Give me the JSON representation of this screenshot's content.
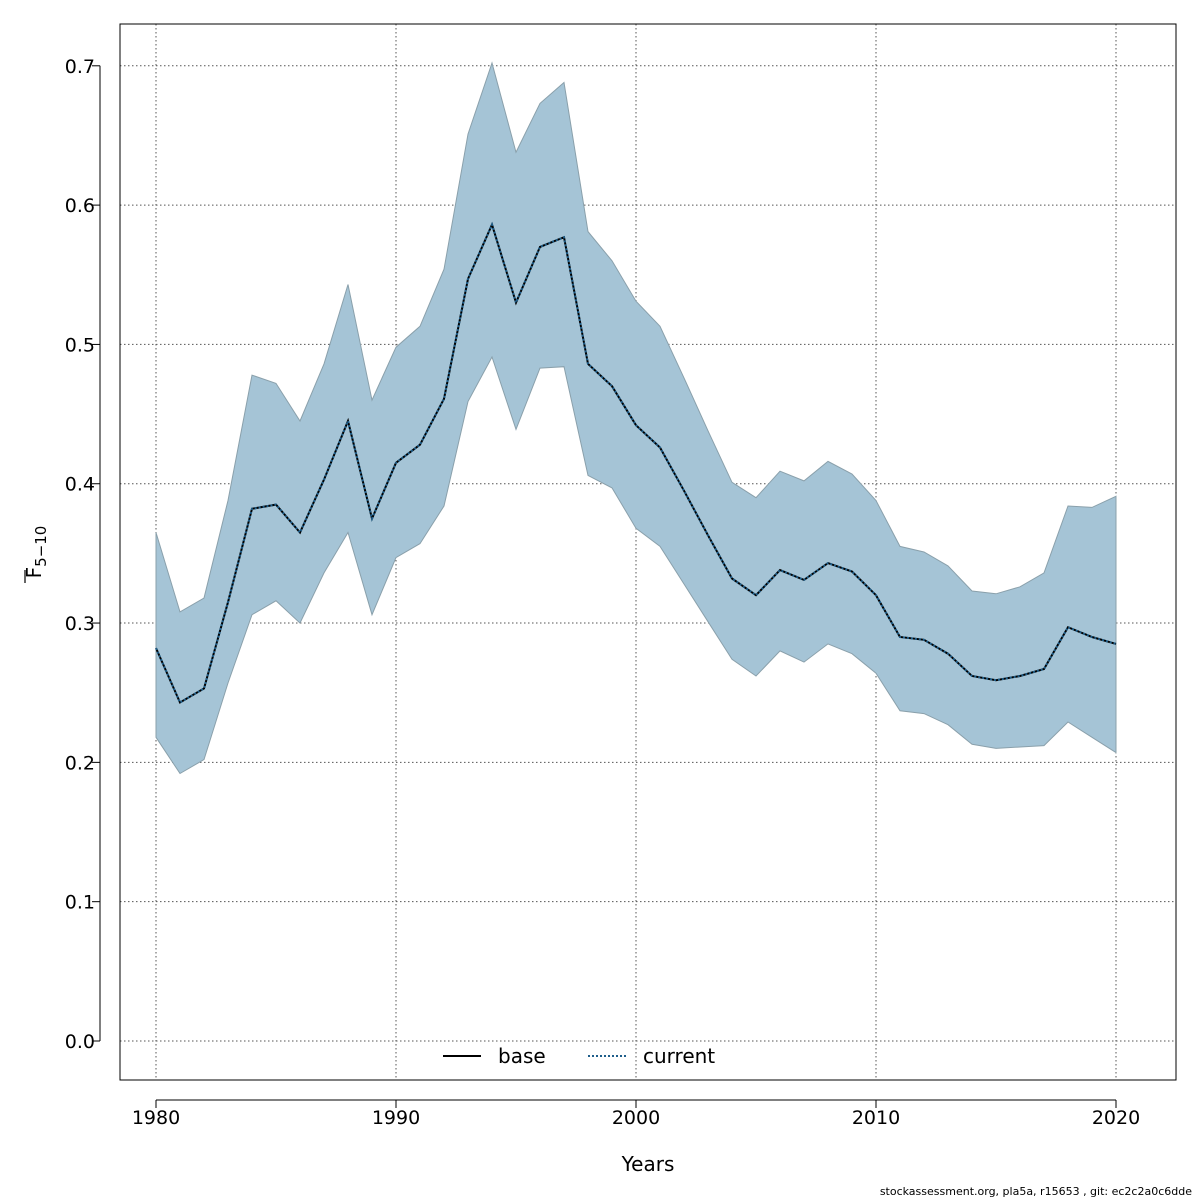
{
  "chart_data": {
    "type": "area",
    "xlabel": "Years",
    "ylabel_main": "F",
    "ylabel_sub": "5−10",
    "xlim": [
      1978.5,
      2022.5
    ],
    "ylim": [
      -0.028,
      0.73
    ],
    "x_ticks": [
      1980,
      1990,
      2000,
      2010,
      2020
    ],
    "y_ticks": [
      0.0,
      0.1,
      0.2,
      0.3,
      0.4,
      0.5,
      0.6,
      0.7
    ],
    "x_tick_labels": [
      "1980",
      "1990",
      "2000",
      "2010",
      "2020"
    ],
    "y_tick_labels": [
      "0.0",
      "0.1",
      "0.2",
      "0.3",
      "0.4",
      "0.5",
      "0.6",
      "0.7"
    ],
    "grid": true,
    "legend_position": "bottom-center",
    "colors": {
      "band": "#a5c4d6",
      "band_edge": "#8aa0ab",
      "current": "#1f5f8b",
      "base": "#000000",
      "grid": "#555555"
    },
    "x": [
      1980,
      1981,
      1982,
      1983,
      1984,
      1985,
      1986,
      1987,
      1988,
      1989,
      1990,
      1991,
      1992,
      1993,
      1994,
      1995,
      1996,
      1997,
      1998,
      1999,
      2000,
      2001,
      2002,
      2003,
      2004,
      2005,
      2006,
      2007,
      2008,
      2009,
      2010,
      2011,
      2012,
      2013,
      2014,
      2015,
      2016,
      2017,
      2018,
      2019,
      2020
    ],
    "band_upper": [
      0.365,
      0.308,
      0.318,
      0.388,
      0.478,
      0.472,
      0.445,
      0.486,
      0.543,
      0.46,
      0.498,
      0.513,
      0.554,
      0.651,
      0.702,
      0.638,
      0.673,
      0.688,
      0.581,
      0.56,
      0.531,
      0.513,
      0.476,
      0.438,
      0.401,
      0.39,
      0.409,
      0.402,
      0.416,
      0.407,
      0.388,
      0.355,
      0.351,
      0.341,
      0.323,
      0.321,
      0.326,
      0.336,
      0.384,
      0.383,
      0.391
    ],
    "band_lower": [
      0.218,
      0.192,
      0.202,
      0.257,
      0.306,
      0.316,
      0.3,
      0.336,
      0.365,
      0.306,
      0.347,
      0.357,
      0.384,
      0.459,
      0.491,
      0.439,
      0.483,
      0.484,
      0.406,
      0.397,
      0.368,
      0.355,
      0.328,
      0.301,
      0.274,
      0.262,
      0.28,
      0.272,
      0.285,
      0.278,
      0.264,
      0.237,
      0.235,
      0.227,
      0.213,
      0.21,
      0.211,
      0.212,
      0.229,
      0.218,
      0.207
    ],
    "series": [
      {
        "name": "base",
        "style": "solid",
        "values": [
          0.282,
          0.243,
          0.253,
          0.315,
          0.382,
          0.385,
          0.365,
          0.403,
          0.445,
          0.375,
          0.415,
          0.428,
          0.461,
          0.547,
          0.586,
          0.53,
          0.57,
          0.577,
          0.486,
          0.47,
          0.442,
          0.426,
          0.395,
          0.363,
          0.332,
          0.32,
          0.338,
          0.331,
          0.343,
          0.337,
          0.32,
          0.29,
          0.288,
          0.278,
          0.262,
          0.259,
          0.262,
          0.267,
          0.297,
          0.29,
          0.285
        ]
      },
      {
        "name": "current",
        "style": "dotted",
        "values": [
          0.282,
          0.243,
          0.253,
          0.315,
          0.382,
          0.385,
          0.365,
          0.403,
          0.445,
          0.375,
          0.415,
          0.428,
          0.461,
          0.547,
          0.586,
          0.53,
          0.57,
          0.577,
          0.486,
          0.47,
          0.442,
          0.426,
          0.395,
          0.363,
          0.332,
          0.32,
          0.338,
          0.331,
          0.343,
          0.337,
          0.32,
          0.29,
          0.288,
          0.278,
          0.262,
          0.259,
          0.262,
          0.267,
          0.297,
          0.29,
          0.285
        ]
      }
    ]
  },
  "footnote": "stockassessment.org, pla5a, r15653 , git: ec2c2a0c6dde"
}
